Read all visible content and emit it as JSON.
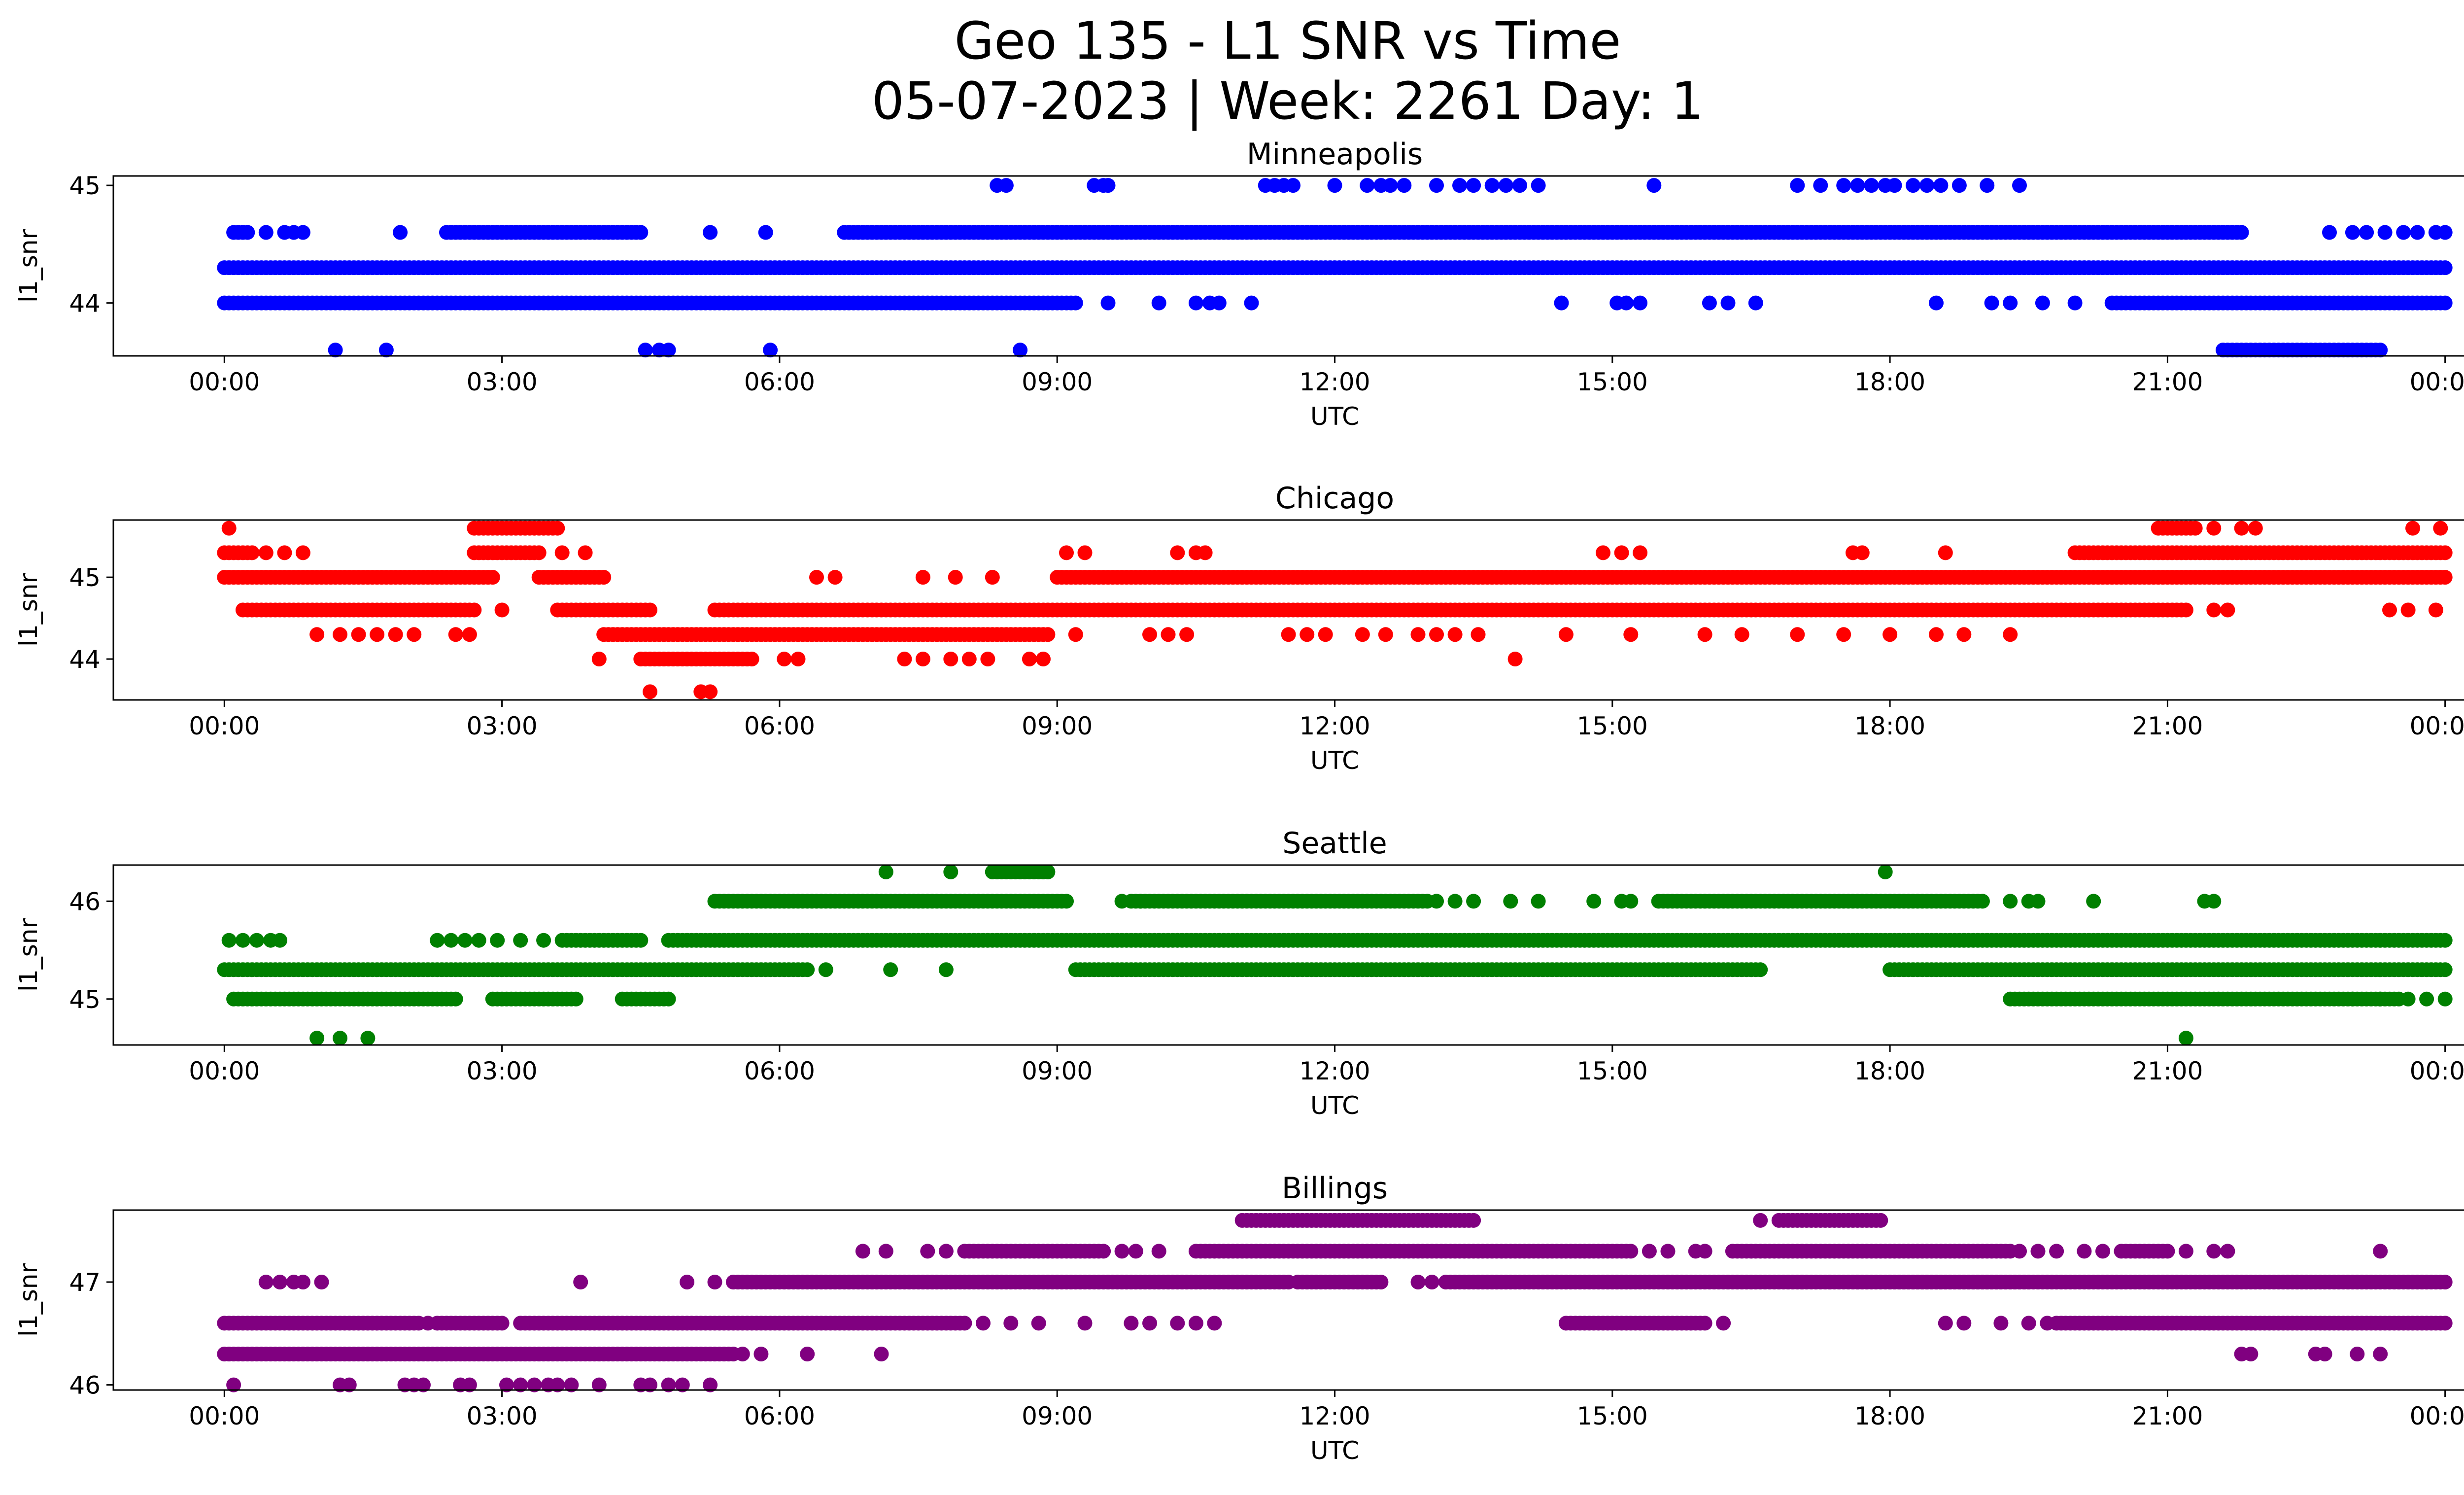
{
  "figure": {
    "title_line1": "Geo 135 - L1 SNR vs Time",
    "title_line2": "05-07-2023 | Week: 2261 Day: 1"
  },
  "chart_data": [
    {
      "type": "scatter",
      "title": "Minneapolis",
      "xlabel": "UTC",
      "ylabel": "l1_snr",
      "color": "#0000ff",
      "xticks": [
        "00:00",
        "03:00",
        "06:00",
        "09:00",
        "12:00",
        "15:00",
        "18:00",
        "21:00",
        "00:00"
      ],
      "xlim_hours": [
        -1.2,
        25.2
      ],
      "yticks": [
        44,
        45
      ],
      "ylim": [
        43.55,
        45.08
      ],
      "series": [
        {
          "y": 44.3,
          "segments": [
            [
              0,
              24
            ]
          ]
        },
        {
          "y": 44.0,
          "segments": [
            [
              0,
              9.2
            ]
          ]
        },
        {
          "y": 44.0,
          "segments": [
            [
              20.4,
              24
            ]
          ]
        },
        {
          "y": 44.0,
          "points": [
            9.55,
            10.1,
            10.5,
            10.65,
            10.75,
            11.1,
            14.45,
            15.05,
            15.15,
            15.3,
            16.05,
            16.25,
            16.55,
            18.5,
            19.1,
            19.3,
            19.65,
            20.0
          ]
        },
        {
          "y": 44.6,
          "segments": [
            [
              0.1,
              0.25
            ],
            [
              2.4,
              4.5
            ],
            [
              6.7,
              21.8
            ]
          ]
        },
        {
          "y": 44.6,
          "points": [
            0.45,
            0.65,
            0.75,
            0.85,
            1.9,
            5.25,
            5.85,
            22.75,
            23.0,
            23.15,
            23.35,
            23.55,
            23.7,
            23.9,
            24.0
          ]
        },
        {
          "y": 45.0,
          "points": [
            8.35,
            8.45,
            9.4,
            9.5,
            9.55,
            11.25,
            11.35,
            11.45,
            11.55,
            12.0,
            12.35,
            12.5,
            12.6,
            12.75,
            13.1,
            13.35,
            13.5,
            13.7,
            13.85,
            14.0,
            14.2,
            15.45,
            17.0,
            17.25,
            17.5,
            17.65,
            17.8,
            17.95,
            18.05,
            18.25,
            18.4,
            18.55,
            18.75,
            19.05,
            19.4
          ]
        },
        {
          "y": 43.6,
          "points": [
            1.2,
            1.75,
            4.55,
            4.7,
            4.8,
            5.9,
            8.6
          ]
        },
        {
          "y": 43.6,
          "segments": [
            [
              21.6,
              23.3
            ]
          ]
        }
      ]
    },
    {
      "type": "scatter",
      "title": "Chicago",
      "xlabel": "UTC",
      "ylabel": "l1_snr",
      "color": "#ff0000",
      "xticks": [
        "00:00",
        "03:00",
        "06:00",
        "09:00",
        "12:00",
        "15:00",
        "18:00",
        "21:00",
        "00:00"
      ],
      "xlim_hours": [
        -1.2,
        25.2
      ],
      "yticks": [
        44,
        45
      ],
      "ylim": [
        43.5,
        45.7
      ],
      "series": [
        {
          "y": 45.0,
          "segments": [
            [
              0,
              2.9
            ],
            [
              3.4,
              4.1
            ],
            [
              9.0,
              24
            ]
          ]
        },
        {
          "y": 45.0,
          "points": [
            6.4,
            6.6,
            7.55,
            7.9,
            8.3
          ]
        },
        {
          "y": 44.6,
          "segments": [
            [
              0.2,
              2.7
            ],
            [
              3.6,
              4.6
            ],
            [
              5.3,
              21.2
            ]
          ]
        },
        {
          "y": 44.6,
          "points": [
            3.0,
            21.5,
            21.65,
            23.4,
            23.6,
            23.9
          ]
        },
        {
          "y": 44.3,
          "segments": [
            [
              4.1,
              8.9
            ]
          ]
        },
        {
          "y": 44.3,
          "points": [
            1.0,
            1.25,
            1.45,
            1.65,
            1.85,
            2.05,
            2.5,
            2.65,
            9.2,
            10.0,
            10.2,
            10.4,
            11.5,
            11.7,
            11.9,
            12.3,
            12.55,
            12.9,
            13.1,
            13.3,
            13.55,
            14.5,
            15.2,
            16.0,
            16.4,
            17.0,
            17.5,
            18.0,
            18.5,
            18.8,
            19.3
          ]
        },
        {
          "y": 45.3,
          "segments": [
            [
              0,
              0.3
            ],
            [
              2.7,
              3.4
            ],
            [
              20.0,
              24
            ]
          ]
        },
        {
          "y": 45.3,
          "points": [
            0.45,
            0.65,
            0.85,
            3.65,
            3.9,
            9.1,
            9.3,
            10.3,
            10.5,
            10.6,
            14.9,
            15.1,
            15.3,
            17.6,
            17.7,
            18.6
          ]
        },
        {
          "y": 45.6,
          "segments": [
            [
              2.7,
              3.6
            ],
            [
              20.9,
              21.3
            ]
          ]
        },
        {
          "y": 45.6,
          "points": [
            0.05,
            21.5,
            21.8,
            21.95,
            23.65,
            23.95
          ]
        },
        {
          "y": 44.0,
          "segments": [
            [
              4.5,
              5.7
            ]
          ]
        },
        {
          "y": 44.0,
          "points": [
            4.05,
            6.05,
            6.2,
            7.35,
            7.55,
            7.85,
            8.05,
            8.25,
            8.7,
            8.85,
            13.95
          ]
        },
        {
          "y": 43.6,
          "points": [
            4.6,
            5.15,
            5.25
          ]
        }
      ]
    },
    {
      "type": "scatter",
      "title": "Seattle",
      "xlabel": "UTC",
      "ylabel": "l1_snr",
      "color": "#008000",
      "xticks": [
        "00:00",
        "03:00",
        "06:00",
        "09:00",
        "12:00",
        "15:00",
        "18:00",
        "21:00",
        "00:00"
      ],
      "xlim_hours": [
        -1.2,
        25.2
      ],
      "yticks": [
        45,
        46
      ],
      "ylim": [
        44.53,
        46.37
      ],
      "series": [
        {
          "y": 45.6,
          "segments": [
            [
              3.65,
              4.5
            ],
            [
              4.8,
              24
            ]
          ]
        },
        {
          "y": 45.6,
          "points": [
            0.05,
            0.2,
            0.35,
            0.5,
            0.6,
            2.3,
            2.45,
            2.6,
            2.75,
            2.95,
            3.2,
            3.45
          ]
        },
        {
          "y": 45.3,
          "segments": [
            [
              0,
              6.3
            ],
            [
              9.2,
              16.6
            ],
            [
              18.0,
              24
            ]
          ]
        },
        {
          "y": 45.3,
          "points": [
            6.5,
            7.2,
            7.8
          ]
        },
        {
          "y": 45.0,
          "segments": [
            [
              0.1,
              2.5
            ],
            [
              2.9,
              3.8
            ],
            [
              4.3,
              4.8
            ],
            [
              19.3,
              23.5
            ]
          ]
        },
        {
          "y": 45.0,
          "points": [
            23.0,
            23.3,
            23.6,
            23.8,
            24.0
          ]
        },
        {
          "y": 46.0,
          "segments": [
            [
              5.3,
              9.1
            ],
            [
              9.8,
              13.0
            ],
            [
              15.5,
              19.0
            ]
          ]
        },
        {
          "y": 46.0,
          "points": [
            9.7,
            9.9,
            13.1,
            13.3,
            13.5,
            13.9,
            14.2,
            14.8,
            15.1,
            15.2,
            19.3,
            19.5,
            19.6,
            20.2,
            21.4,
            21.5
          ]
        },
        {
          "y": 46.3,
          "segments": [
            [
              8.3,
              8.9
            ]
          ]
        },
        {
          "y": 46.3,
          "points": [
            7.15,
            7.85,
            17.95
          ]
        },
        {
          "y": 44.6,
          "points": [
            1.0,
            1.25,
            1.55,
            21.2
          ]
        }
      ]
    },
    {
      "type": "scatter",
      "title": "Billings",
      "xlabel": "UTC",
      "ylabel": "l1_snr",
      "color": "#800080",
      "xticks": [
        "00:00",
        "03:00",
        "06:00",
        "09:00",
        "12:00",
        "15:00",
        "18:00",
        "21:00",
        "00:00"
      ],
      "xlim_hours": [
        -1.2,
        25.2
      ],
      "yticks": [
        46,
        47
      ],
      "ylim": [
        45.95,
        47.7
      ],
      "series": [
        {
          "y": 47.0,
          "segments": [
            [
              5.5,
              11.5
            ],
            [
              11.6,
              12.5
            ],
            [
              13.2,
              19.5
            ],
            [
              18.0,
              24
            ]
          ]
        },
        {
          "y": 47.0,
          "points": [
            0.45,
            0.6,
            0.75,
            0.85,
            1.05,
            3.85,
            5.0,
            5.3,
            12.9,
            13.05,
            17.05,
            17.35,
            17.65
          ]
        },
        {
          "y": 46.6,
          "segments": [
            [
              0,
              2.1
            ],
            [
              2.3,
              3.0
            ],
            [
              3.2,
              8.0
            ],
            [
              14.5,
              16.0
            ]
          ]
        },
        {
          "y": 46.6,
          "points": [
            2.2,
            8.2,
            8.5,
            8.8,
            9.3,
            9.8,
            10.0,
            10.3,
            10.5,
            10.7,
            16.2,
            18.6,
            18.8,
            19.2,
            19.5,
            19.7
          ]
        },
        {
          "y": 46.6,
          "segments": [
            [
              19.8,
              24
            ]
          ]
        },
        {
          "y": 46.3,
          "segments": [
            [
              0,
              5.5
            ]
          ]
        },
        {
          "y": 46.3,
          "points": [
            5.6,
            5.8,
            6.3,
            7.1,
            21.8,
            21.9,
            22.6,
            22.7,
            23.05,
            23.3
          ]
        },
        {
          "y": 47.3,
          "segments": [
            [
              8.0,
              9.5
            ],
            [
              10.5,
              15.2
            ],
            [
              16.3,
              19.3
            ],
            [
              20.5,
              21.0
            ]
          ]
        },
        {
          "y": 47.3,
          "points": [
            6.9,
            7.15,
            7.6,
            7.8,
            9.7,
            9.85,
            10.1,
            15.4,
            15.6,
            15.9,
            16.0,
            19.4,
            19.6,
            19.8,
            20.1,
            20.3,
            21.2,
            21.5,
            21.65,
            23.3
          ]
        },
        {
          "y": 47.6,
          "segments": [
            [
              11.0,
              13.5
            ],
            [
              16.8,
              17.9
            ]
          ]
        },
        {
          "y": 47.6,
          "points": [
            16.6
          ]
        },
        {
          "y": 46.0,
          "points": [
            0.1,
            1.25,
            1.35,
            1.95,
            2.05,
            2.15,
            2.55,
            2.65,
            3.05,
            3.2,
            3.35,
            3.5,
            3.6,
            3.75,
            4.05,
            4.5,
            4.6,
            4.8,
            4.95,
            5.25
          ]
        }
      ]
    }
  ]
}
